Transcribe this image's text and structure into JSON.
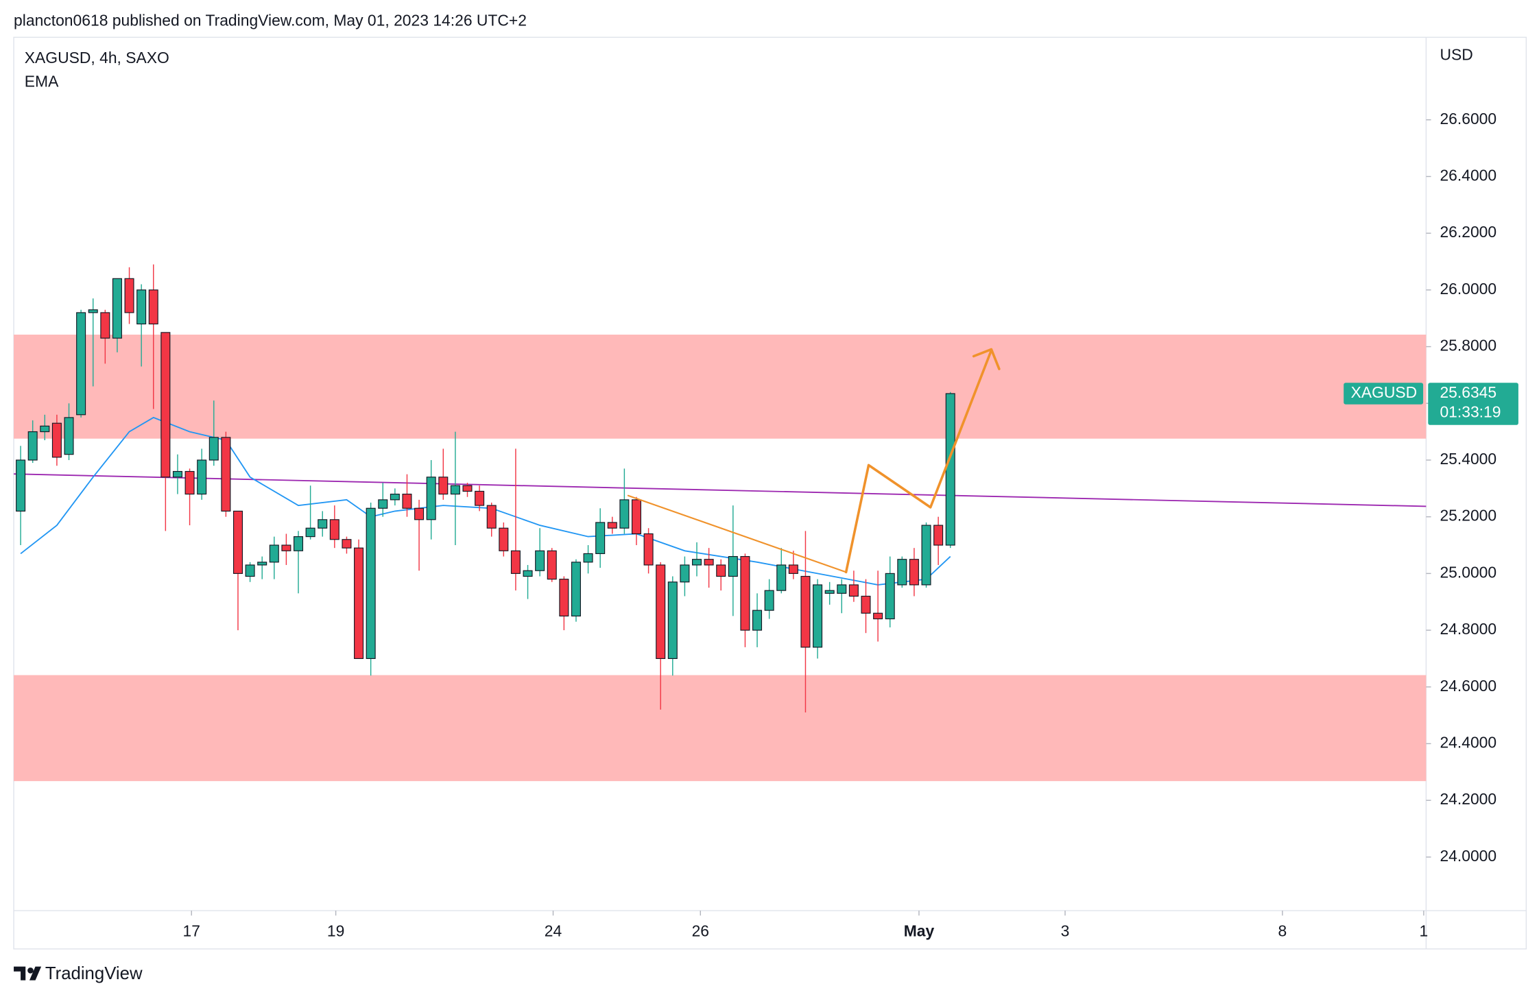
{
  "header": "plancton0618 published on TradingView.com, May 01, 2023 14:26 UTC+2",
  "footer": "TradingView",
  "chart_data": {
    "type": "candlestick",
    "title": "XAGUSD, 4h, SAXO",
    "currency": "USD",
    "symbol": "XAGUSD",
    "countdown": "01:33:19",
    "up_color": "#22ab94",
    "down_color": "#f23645",
    "open": [
      25.22,
      25.4,
      25.5,
      25.53,
      25.42,
      25.56,
      25.92,
      25.92,
      25.83,
      26.04,
      25.88,
      26.0,
      25.85,
      25.34,
      25.36,
      25.28,
      25.4,
      25.48,
      25.22,
      24.99,
      25.03,
      25.04,
      25.1,
      25.08,
      25.13,
      25.16,
      25.19,
      25.12,
      25.09,
      24.7,
      25.23,
      25.26,
      25.28,
      25.23,
      25.19,
      25.34,
      25.28,
      25.31,
      25.29,
      25.24,
      25.16,
      25.08,
      24.99,
      25.01,
      25.08,
      24.98,
      24.85,
      25.04,
      25.07,
      25.18,
      25.16,
      25.26,
      25.14,
      25.03,
      24.7,
      24.97,
      25.03,
      25.05,
      25.03,
      24.99,
      25.06,
      24.8,
      24.87,
      24.94,
      25.03,
      24.99,
      24.74,
      24.93,
      24.93,
      24.96,
      24.92,
      24.86,
      24.84,
      24.96,
      25.05,
      24.96,
      25.17,
      25.1
    ],
    "high": [
      25.45,
      25.54,
      25.56,
      25.56,
      25.6,
      25.93,
      25.97,
      25.93,
      26.04,
      26.08,
      26.02,
      26.09,
      25.85,
      25.42,
      25.37,
      25.44,
      25.61,
      25.5,
      25.22,
      25.04,
      25.06,
      25.13,
      25.14,
      25.15,
      25.31,
      25.22,
      25.24,
      25.13,
      25.12,
      25.25,
      25.32,
      25.3,
      25.35,
      25.26,
      25.4,
      25.44,
      25.5,
      25.32,
      25.31,
      25.25,
      25.18,
      25.44,
      25.03,
      25.16,
      25.09,
      24.99,
      25.05,
      25.1,
      25.23,
      25.2,
      25.37,
      25.27,
      25.16,
      25.04,
      24.99,
      25.06,
      25.11,
      25.09,
      25.05,
      25.24,
      25.07,
      24.93,
      24.98,
      25.09,
      25.08,
      25.15,
      24.98,
      24.97,
      24.98,
      25.01,
      24.98,
      25.01,
      25.06,
      25.06,
      25.09,
      25.18,
      25.2,
      25.64
    ],
    "low": [
      25.1,
      25.39,
      25.47,
      25.38,
      25.4,
      25.55,
      25.66,
      25.74,
      25.78,
      25.88,
      25.73,
      25.58,
      25.15,
      25.28,
      25.17,
      25.26,
      25.38,
      25.2,
      24.8,
      24.97,
      24.98,
      24.98,
      25.03,
      24.93,
      25.12,
      25.13,
      25.09,
      25.07,
      24.7,
      24.64,
      25.2,
      25.24,
      25.2,
      25.01,
      25.12,
      25.26,
      25.1,
      25.27,
      25.22,
      25.13,
      25.06,
      24.94,
      24.91,
      24.99,
      24.97,
      24.8,
      24.83,
      25.0,
      25.02,
      25.14,
      25.14,
      25.1,
      25.0,
      24.52,
      24.64,
      24.92,
      24.99,
      24.95,
      24.94,
      24.85,
      24.74,
      24.74,
      24.84,
      24.93,
      24.98,
      24.51,
      24.7,
      24.89,
      24.86,
      24.9,
      24.79,
      24.76,
      24.81,
      24.95,
      24.92,
      24.95,
      25.03,
      25.09
    ],
    "close": [
      25.4,
      25.5,
      25.52,
      25.41,
      25.55,
      25.92,
      25.93,
      25.83,
      26.04,
      25.92,
      26.0,
      25.88,
      25.34,
      25.36,
      25.28,
      25.4,
      25.48,
      25.22,
      25.0,
      25.03,
      25.04,
      25.1,
      25.08,
      25.13,
      25.16,
      25.19,
      25.12,
      25.09,
      24.7,
      25.23,
      25.26,
      25.28,
      25.23,
      25.19,
      25.34,
      25.28,
      25.31,
      25.29,
      25.24,
      25.16,
      25.08,
      25.0,
      25.01,
      25.08,
      24.98,
      24.85,
      25.04,
      25.07,
      25.18,
      25.16,
      25.26,
      25.14,
      25.03,
      24.7,
      24.97,
      25.03,
      25.05,
      25.03,
      24.99,
      25.06,
      24.8,
      24.87,
      24.94,
      25.03,
      25.0,
      24.74,
      24.96,
      24.94,
      24.96,
      24.92,
      24.86,
      24.84,
      25.0,
      25.05,
      24.96,
      25.17,
      25.1,
      25.6345
    ],
    "series": [
      {
        "name": "EMA",
        "color": "#2196f3",
        "x": [
          0,
          3,
          6,
          9,
          11,
          14,
          17,
          19,
          23,
          27,
          29,
          31,
          35,
          39,
          43,
          47,
          51,
          55,
          61,
          66,
          71,
          75,
          77
        ],
        "values": [
          25.07,
          25.17,
          25.34,
          25.5,
          25.55,
          25.5,
          25.47,
          25.34,
          25.24,
          25.26,
          25.2,
          25.22,
          25.24,
          25.23,
          25.17,
          25.13,
          25.14,
          25.08,
          25.04,
          25.0,
          24.96,
          24.98,
          25.06
        ]
      }
    ],
    "xlim": [
      -0.57,
      116.4
    ],
    "xticks": [
      {
        "value": 14.15,
        "label": "17"
      },
      {
        "value": 26.1,
        "label": "19"
      },
      {
        "value": 44.1,
        "label": "24"
      },
      {
        "value": 56.3,
        "label": "26"
      },
      {
        "value": 74.4,
        "label": "May"
      },
      {
        "value": 86.5,
        "label": "3"
      },
      {
        "value": 104.5,
        "label": "8"
      },
      {
        "value": 116.2,
        "label": "1"
      }
    ],
    "ylim": [
      23.811,
      26.891
    ],
    "yticks": [
      {
        "value": 24.0,
        "label": "24.0000"
      },
      {
        "value": 24.2,
        "label": "24.2000"
      },
      {
        "value": 24.4,
        "label": "24.4000"
      },
      {
        "value": 24.6,
        "label": "24.6000"
      },
      {
        "value": 24.8,
        "label": "24.8000"
      },
      {
        "value": 25.0,
        "label": "25.0000"
      },
      {
        "value": 25.2,
        "label": "25.2000"
      },
      {
        "value": 25.4,
        "label": "25.4000"
      },
      {
        "value": 25.6,
        "label": "25.6000"
      },
      {
        "value": 25.8,
        "label": "25.8000"
      },
      {
        "value": 26.0,
        "label": "26.0000"
      },
      {
        "value": 26.2,
        "label": "26.2000"
      },
      {
        "value": 26.4,
        "label": "26.4000"
      },
      {
        "value": 26.6,
        "label": "26.6000"
      }
    ]
  }
}
